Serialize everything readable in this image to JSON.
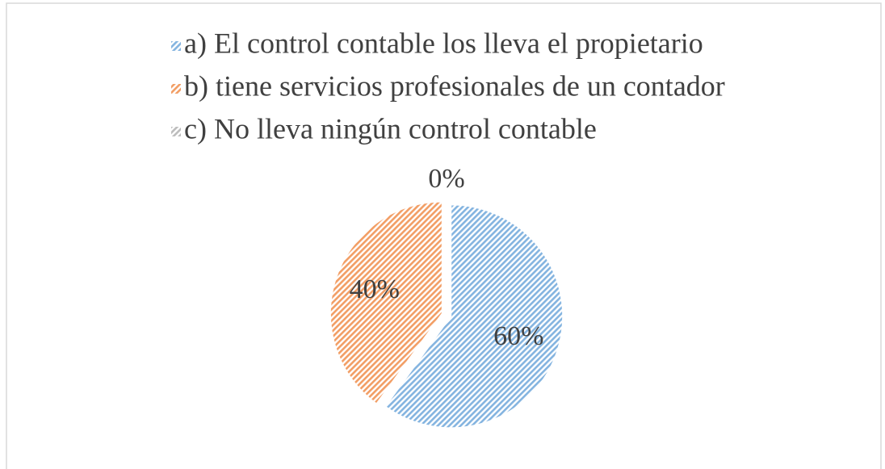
{
  "chart_data": {
    "type": "pie",
    "categories": [
      "a) El control contable los lleva el propietario",
      "b) tiene servicios profesionales de un contador",
      "c) No lleva ningún control contable"
    ],
    "values": [
      60,
      40,
      0
    ],
    "value_labels": [
      "60%",
      "40%",
      "0%"
    ],
    "colors": [
      "#5b9bd5",
      "#ed7d31",
      "#a5a5a5"
    ],
    "legend": "top"
  }
}
